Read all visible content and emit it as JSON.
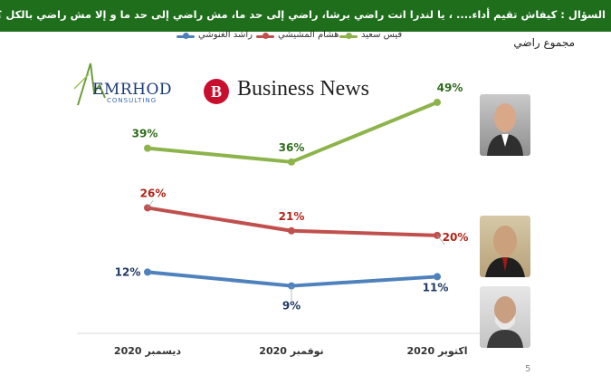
{
  "header": {
    "question": "السؤال : كيفاش تقيم أداء.... ، يا لندرا انت راضي برشا، راضي إلى حد ما، مش راضي إلى حد ما و إلا مش راضي بالكل ؟",
    "subtitle": "مجموع راضي"
  },
  "logos": {
    "emrhod_name": "EMRHOD",
    "emrhod_sub": "CONSULTING",
    "business_news": "Business News"
  },
  "colors": {
    "banner": "#1e6e1c",
    "kais": "#8db44a",
    "hichem": "#c0504d",
    "rached": "#4f81bd"
  },
  "chart_data": {
    "type": "line",
    "categories": [
      "ديسمبر 2020",
      "نوفمبر 2020",
      "اكتوبر 2020"
    ],
    "unit": "%",
    "series": [
      {
        "name": "قيس سعيد",
        "values": [
          39,
          36,
          49
        ],
        "color": "#8db44a",
        "label_color": "#2e6b1a",
        "labels": [
          "39%",
          "36%",
          "49%"
        ]
      },
      {
        "name": "هشام المشيشي",
        "values": [
          26,
          21,
          20
        ],
        "color": "#c0504d",
        "label_color": "#b02418",
        "labels": [
          "26%",
          "21%",
          "20%"
        ]
      },
      {
        "name": "راشد الغنوشي",
        "values": [
          12,
          9,
          11
        ],
        "color": "#4f81bd",
        "label_color": "#1f3864",
        "labels": [
          "12%",
          "9%",
          "11%"
        ]
      }
    ],
    "legend_position": "top",
    "grid": false
  },
  "footer": {
    "page": "5"
  }
}
